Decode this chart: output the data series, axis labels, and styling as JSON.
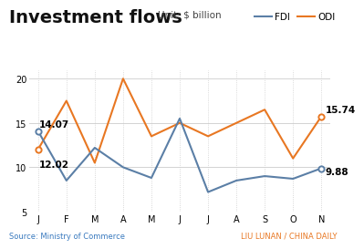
{
  "title": "Investment flows",
  "subtitle": "Unit: $ billion",
  "months": [
    "J",
    "F",
    "M",
    "A",
    "M",
    "J",
    "J",
    "A",
    "S",
    "O",
    "N"
  ],
  "fdi": [
    14.07,
    8.5,
    12.2,
    10.0,
    8.8,
    15.5,
    7.2,
    8.5,
    9.0,
    8.7,
    9.88
  ],
  "odi": [
    12.02,
    17.5,
    10.5,
    20.0,
    13.5,
    15.0,
    13.5,
    15.0,
    16.5,
    11.0,
    15.74
  ],
  "fdi_color": "#5b7fa6",
  "odi_color": "#e87722",
  "fdi_label": "FDI",
  "odi_label": "ODI",
  "fdi_first_label": "14.07",
  "fdi_last_label": "9.88",
  "odi_first_label": "12.02",
  "odi_last_label": "15.74",
  "ylim": [
    5,
    21
  ],
  "yticks": [
    5,
    10,
    15,
    20
  ],
  "source_text": "Source: Ministry of Commerce",
  "credit_text": "LIU LUNAN / CHINA DAILY",
  "bg_color": "#ffffff",
  "plot_bg_color": "#ffffff",
  "grid_color": "#cccccc",
  "title_fontsize": 14,
  "subtitle_fontsize": 7.5,
  "tick_fontsize": 7,
  "annot_fontsize": 7.5
}
